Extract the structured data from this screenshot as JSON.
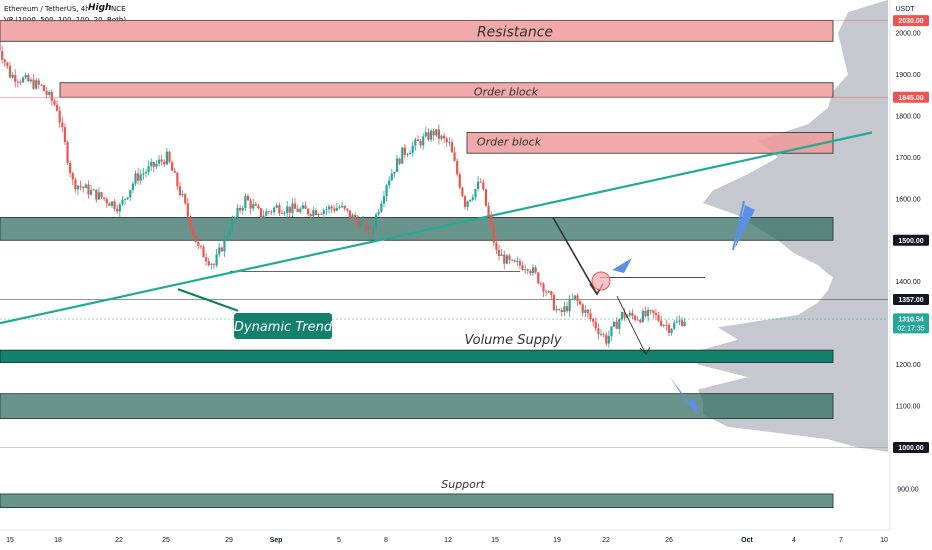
{
  "header": {
    "symbol_line": "Ethereum / TetherUS, 4h, BINANCE",
    "indicator_line": "VP (1000, 500, 100, 100, 20, Both)",
    "high_badge": "High"
  },
  "colors": {
    "up_candle": "#26a69a",
    "down_candle": "#ef5350",
    "resistance_fill": "#ef9a9a",
    "support_fill": "#2e6b5e",
    "trend_line": "#22ab94",
    "volume_profile": "#b2b5be",
    "annotation_arrow": "#5b8fe8"
  },
  "chart_data": {
    "type": "candlestick",
    "symbol": "Ethereum / TetherUS",
    "timeframe": "4h",
    "exchange": "BINANCE",
    "y_unit": "USDT",
    "ylim": [
      830,
      2090
    ],
    "x_ticks": [
      "15",
      "18",
      "22",
      "25",
      "29",
      "Sep",
      "5",
      "8",
      "12",
      "15",
      "19",
      "22",
      "26",
      "Oct",
      "4",
      "7",
      "10"
    ],
    "y_ticks": [
      900,
      1000,
      1100,
      1200,
      1300,
      1400,
      1500,
      1600,
      1700,
      1800,
      1900,
      2000
    ],
    "price_badges": [
      {
        "value": "2030.00",
        "color": "#ef5350"
      },
      {
        "value": "1845.00",
        "color": "#ef5350"
      },
      {
        "value": "1500.00",
        "color": "#131722"
      },
      {
        "value": "1357.00",
        "color": "#131722"
      },
      {
        "value": "1310.54",
        "countdown": "02:17:35",
        "color": "#26a69a"
      },
      {
        "value": "1000.00",
        "color": "#131722"
      }
    ],
    "close_path": [
      {
        "date": "Aug 14",
        "close": 1995
      },
      {
        "date": "Aug 15",
        "close": 1900
      },
      {
        "date": "Aug 17",
        "close": 1870
      },
      {
        "date": "Aug 18",
        "close": 1820
      },
      {
        "date": "Aug 19",
        "close": 1640
      },
      {
        "date": "Aug 21",
        "close": 1600
      },
      {
        "date": "Aug 22",
        "close": 1580
      },
      {
        "date": "Aug 23",
        "close": 1650
      },
      {
        "date": "Aug 25",
        "close": 1700
      },
      {
        "date": "Aug 26",
        "close": 1600
      },
      {
        "date": "Aug 27",
        "close": 1480
      },
      {
        "date": "Aug 28",
        "close": 1440
      },
      {
        "date": "Aug 29",
        "close": 1530
      },
      {
        "date": "Aug 30",
        "close": 1600
      },
      {
        "date": "Aug 31",
        "close": 1560
      },
      {
        "date": "Sep 1",
        "close": 1580
      },
      {
        "date": "Sep 3",
        "close": 1570
      },
      {
        "date": "Sep 5",
        "close": 1580
      },
      {
        "date": "Sep 7",
        "close": 1520
      },
      {
        "date": "Sep 8",
        "close": 1640
      },
      {
        "date": "Sep 9",
        "close": 1710
      },
      {
        "date": "Sep 11",
        "close": 1760
      },
      {
        "date": "Sep 12",
        "close": 1730
      },
      {
        "date": "Sep 13",
        "close": 1590
      },
      {
        "date": "Sep 14",
        "close": 1640
      },
      {
        "date": "Sep 15",
        "close": 1470
      },
      {
        "date": "Sep 16",
        "close": 1440
      },
      {
        "date": "Sep 17",
        "close": 1440
      },
      {
        "date": "Sep 18",
        "close": 1390
      },
      {
        "date": "Sep 19",
        "close": 1320
      },
      {
        "date": "Sep 20",
        "close": 1360
      },
      {
        "date": "Sep 21",
        "close": 1310
      },
      {
        "date": "Sep 22",
        "close": 1260
      },
      {
        "date": "Sep 23",
        "close": 1320
      },
      {
        "date": "Sep 24",
        "close": 1315
      },
      {
        "date": "Sep 25",
        "close": 1320
      },
      {
        "date": "Sep 26",
        "close": 1290
      },
      {
        "date": "Sep 27",
        "close": 1310
      }
    ],
    "zones": [
      {
        "label": "Resistance",
        "low": 1980,
        "high": 2030,
        "color": "#ef9a9a"
      },
      {
        "label": "Order block",
        "low": 1845,
        "high": 1880,
        "color": "#ef9a9a"
      },
      {
        "label": "Order block",
        "low": 1710,
        "high": 1760,
        "color": "#ef9a9a"
      },
      {
        "label": "",
        "low": 1500,
        "high": 1555,
        "color": "#2e6b5e"
      },
      {
        "label": "Volume Supply",
        "low": 1205,
        "high": 1235,
        "color": "#12806a"
      },
      {
        "label": "",
        "low": 1070,
        "high": 1130,
        "color": "#2e6b5e"
      },
      {
        "label": "Support",
        "low": 855,
        "high": 888,
        "color": "#2e6b5e"
      }
    ],
    "trend_line": {
      "label": "Dynamic Trend",
      "from": {
        "date": "Aug 14",
        "price": 1300
      },
      "to": {
        "date": "Oct 8",
        "price": 1760
      }
    },
    "annotations": [
      "Dynamic Trend",
      "Volume Supply",
      "Support",
      "Resistance",
      "Order block",
      "Order block"
    ],
    "grid": false,
    "legend": "top-left"
  }
}
